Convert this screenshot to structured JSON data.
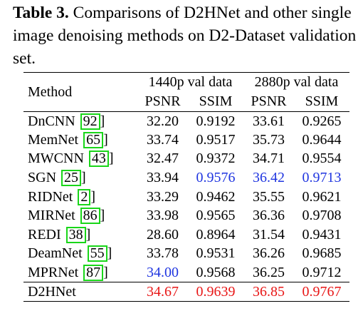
{
  "caption": {
    "label": "Table 3.",
    "text": "Comparisons of D2HNet and other single image denoising methods on D2-Dataset validation set."
  },
  "table": {
    "method_header": "Method",
    "group_headers": [
      "1440p val data",
      "2880p val data"
    ],
    "sub_headers": [
      "PSNR",
      "SSIM",
      "PSNR",
      "SSIM"
    ],
    "rows": [
      {
        "method": "DnCNN",
        "cite": "92",
        "cite_close": "]",
        "values": [
          "32.20",
          "0.9192",
          "33.61",
          "0.9265"
        ]
      },
      {
        "method": "MemNet",
        "cite": "65",
        "cite_close": "]",
        "values": [
          "33.74",
          "0.9517",
          "35.73",
          "0.9644"
        ]
      },
      {
        "method": "MWCNN",
        "cite": "43",
        "cite_close": "]",
        "values": [
          "32.47",
          "0.9372",
          "34.71",
          "0.9554"
        ]
      },
      {
        "method": "SGN",
        "cite": "25",
        "cite_close": "]",
        "values": [
          "33.94",
          "0.9576",
          "36.42",
          "0.9713"
        ]
      },
      {
        "method": "RIDNet",
        "cite": "2",
        "cite_close": "]",
        "values": [
          "33.29",
          "0.9462",
          "35.55",
          "0.9621"
        ]
      },
      {
        "method": "MIRNet",
        "cite": "86",
        "cite_close": "]",
        "values": [
          "33.98",
          "0.9565",
          "36.36",
          "0.9708"
        ]
      },
      {
        "method": "REDI",
        "cite": "38",
        "cite_close": "]",
        "values": [
          "28.60",
          "0.8964",
          "31.54",
          "0.9431"
        ]
      },
      {
        "method": "DeamNet",
        "cite": "55",
        "cite_close": "]",
        "values": [
          "33.78",
          "0.9531",
          "36.26",
          "0.9685"
        ]
      },
      {
        "method": "MPRNet",
        "cite": "87",
        "cite_close": "]",
        "values": [
          "34.00",
          "0.9568",
          "36.25",
          "0.9712"
        ]
      }
    ],
    "final_row": {
      "method": "D2HNet",
      "values": [
        "34.67",
        "0.9639",
        "36.85",
        "0.9767"
      ]
    },
    "colors": {
      "best": "#e81616",
      "second_best": "#1f35e0",
      "citation_box": "#19d619"
    }
  }
}
